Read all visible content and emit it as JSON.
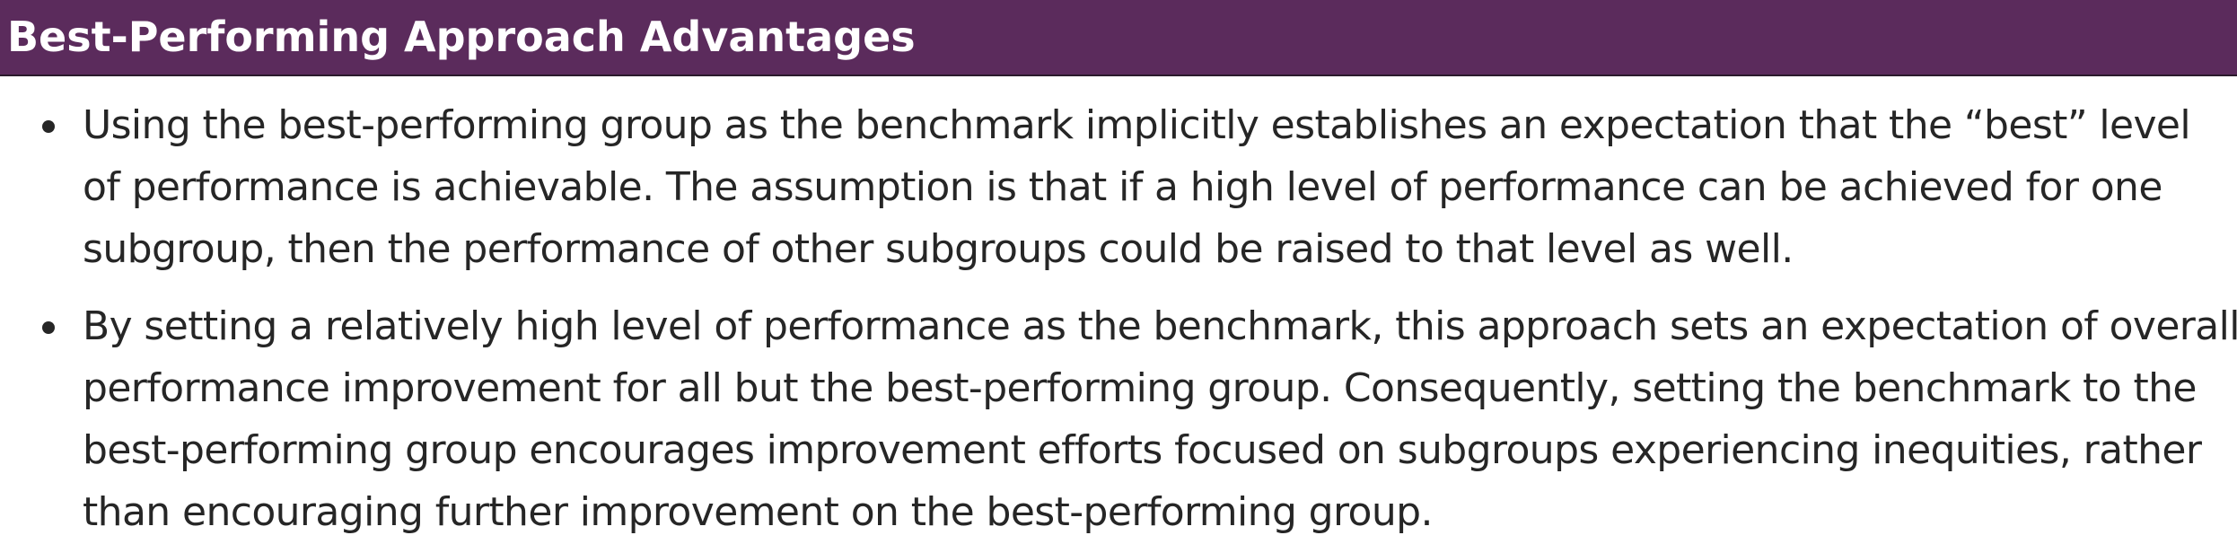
{
  "header": {
    "title": "Best-Performing Approach Advantages",
    "background_color": "#5b2b5c",
    "text_color": "#ffffff"
  },
  "bullets": [
    {
      "lines": [
        "Using the best-performing group as the benchmark implicitly establishes an expectation that the “best” level",
        "of performance is achievable. The assumption is that if a high level of performance can be achieved for one",
        "subgroup, then the performance of other subgroups could be raised to that level as well."
      ]
    },
    {
      "lines": [
        "By setting a relatively high level of performance as the benchmark, this approach sets an expectation of overall",
        "performance improvement for all but the best-performing group. Consequently, setting the benchmark to the",
        "best-performing group encourages improvement efforts focused on subgroups experiencing inequities, rather",
        "than encouraging further improvement on the best-performing group."
      ]
    }
  ]
}
